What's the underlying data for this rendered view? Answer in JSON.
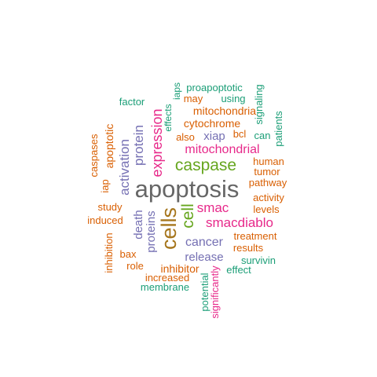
{
  "word_cloud": {
    "palette": {
      "teal": "#1b9e77",
      "orange": "#d95f02",
      "purple": "#7570b3",
      "magenta": "#e7298a",
      "green": "#66a61e",
      "gold": "#a6761d",
      "gray": "#666666"
    },
    "words": [
      {
        "text": "apoptosis",
        "color": "gray"
      },
      {
        "text": "cells",
        "color": "gold"
      },
      {
        "text": "caspase",
        "color": "green"
      },
      {
        "text": "cell",
        "color": "green"
      },
      {
        "text": "mitochondrial",
        "color": "magenta"
      },
      {
        "text": "smacdiablo",
        "color": "magenta"
      },
      {
        "text": "expression",
        "color": "magenta"
      },
      {
        "text": "smac",
        "color": "magenta"
      },
      {
        "text": "protein",
        "color": "purple"
      },
      {
        "text": "activation",
        "color": "purple"
      },
      {
        "text": "cancer",
        "color": "purple"
      },
      {
        "text": "release",
        "color": "purple"
      },
      {
        "text": "proteins",
        "color": "purple"
      },
      {
        "text": "death",
        "color": "purple"
      },
      {
        "text": "xiap",
        "color": "purple"
      },
      {
        "text": "mitochondria",
        "color": "orange"
      },
      {
        "text": "cytochrome",
        "color": "orange"
      },
      {
        "text": "inhibitor",
        "color": "orange"
      },
      {
        "text": "treatment",
        "color": "orange"
      },
      {
        "text": "apoptotic",
        "color": "orange"
      },
      {
        "text": "iap",
        "color": "orange"
      },
      {
        "text": "human",
        "color": "orange"
      },
      {
        "text": "tumor",
        "color": "orange"
      },
      {
        "text": "pathway",
        "color": "orange"
      },
      {
        "text": "activity",
        "color": "orange"
      },
      {
        "text": "levels",
        "color": "orange"
      },
      {
        "text": "results",
        "color": "orange"
      },
      {
        "text": "increased",
        "color": "orange"
      },
      {
        "text": "study",
        "color": "orange"
      },
      {
        "text": "induced",
        "color": "orange"
      },
      {
        "text": "also",
        "color": "orange"
      },
      {
        "text": "bcl",
        "color": "orange"
      },
      {
        "text": "bax",
        "color": "orange"
      },
      {
        "text": "role",
        "color": "orange"
      },
      {
        "text": "may",
        "color": "orange"
      },
      {
        "text": "caspases",
        "color": "orange"
      },
      {
        "text": "inhibition",
        "color": "orange"
      },
      {
        "text": "significantly",
        "color": "magenta"
      },
      {
        "text": "proapoptotic",
        "color": "teal"
      },
      {
        "text": "using",
        "color": "teal"
      },
      {
        "text": "factor",
        "color": "teal"
      },
      {
        "text": "iaps",
        "color": "teal"
      },
      {
        "text": "effects",
        "color": "teal"
      },
      {
        "text": "signaling",
        "color": "teal"
      },
      {
        "text": "can",
        "color": "teal"
      },
      {
        "text": "patients",
        "color": "teal"
      },
      {
        "text": "survivin",
        "color": "teal"
      },
      {
        "text": "effect",
        "color": "teal"
      },
      {
        "text": "membrane",
        "color": "teal"
      },
      {
        "text": "potential",
        "color": "teal"
      }
    ]
  }
}
